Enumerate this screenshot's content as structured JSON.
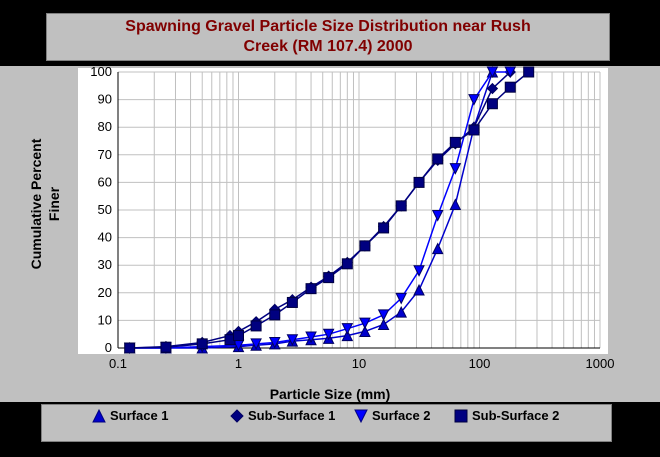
{
  "chart_data": {
    "type": "line",
    "title": "Spawning Gravel Particle Size Distribution near Rush\nCreek (RM 107.4) 2000",
    "xlabel": "Particle Size (mm)",
    "ylabel": "Cumulative Percent Finer",
    "xscale": "log",
    "xlim": [
      0.1,
      1000
    ],
    "ylim": [
      0,
      100
    ],
    "x_ticks": [
      "0.1",
      "1",
      "10",
      "100",
      "1000"
    ],
    "y_ticks": [
      "0",
      "10",
      "20",
      "30",
      "40",
      "50",
      "60",
      "70",
      "80",
      "90",
      "100"
    ],
    "grid": true,
    "legend_position": "bottom",
    "series": [
      {
        "name": "Surface 1",
        "marker": "triangle-up",
        "color": "#0000cc",
        "x": [
          0.125,
          0.25,
          0.5,
          1,
          1.4,
          2,
          2.8,
          4,
          5.6,
          8,
          11.2,
          16,
          22.4,
          31.5,
          45,
          63,
          90,
          128
        ],
        "y": [
          0,
          0,
          0,
          0.5,
          1,
          1.5,
          2.5,
          3,
          3.5,
          4.5,
          6,
          8.5,
          13,
          21,
          36,
          52,
          80,
          100
        ]
      },
      {
        "name": "Sub-Surface 1",
        "marker": "diamond",
        "color": "#000080",
        "x": [
          0.125,
          0.25,
          0.5,
          0.85,
          1,
          1.4,
          2,
          2.8,
          4,
          5.6,
          8,
          11.2,
          16,
          22.4,
          31.5,
          45,
          63,
          90,
          128,
          180
        ],
        "y": [
          0,
          0.5,
          2,
          4.5,
          6,
          9.5,
          14,
          17.5,
          22,
          26,
          31,
          37,
          44,
          51.5,
          60,
          68,
          74,
          80,
          94,
          100
        ]
      },
      {
        "name": "Surface 2",
        "marker": "triangle-down",
        "color": "#0000ff",
        "x": [
          0.125,
          0.25,
          0.5,
          1,
          1.4,
          2,
          2.8,
          4,
          5.6,
          8,
          11.2,
          16,
          22.4,
          31.5,
          45,
          63,
          90,
          128,
          180
        ],
        "y": [
          0,
          0,
          0.5,
          1,
          1.5,
          2,
          3,
          4,
          5,
          7,
          9,
          12,
          18,
          28,
          48,
          65,
          90,
          100,
          100
        ]
      },
      {
        "name": "Sub-Surface 2",
        "marker": "square",
        "color": "#000080",
        "x": [
          0.125,
          0.25,
          0.5,
          0.85,
          1,
          1.4,
          2,
          2.8,
          4,
          5.6,
          8,
          11.2,
          16,
          22.4,
          31.5,
          45,
          63,
          90,
          128,
          180,
          256
        ],
        "y": [
          0,
          0.3,
          1.5,
          3,
          4.5,
          8,
          12,
          16.5,
          21.5,
          25.5,
          30.5,
          37,
          43.5,
          51.5,
          60,
          68.5,
          74.5,
          79,
          88.5,
          94.5,
          100
        ]
      }
    ]
  },
  "legend": {
    "items": [
      {
        "label": "Surface 1",
        "marker": "triangle-up"
      },
      {
        "label": "Sub-Surface 1",
        "marker": "diamond"
      },
      {
        "label": "Surface 2",
        "marker": "triangle-down"
      },
      {
        "label": "Sub-Surface 2",
        "marker": "square"
      }
    ]
  }
}
